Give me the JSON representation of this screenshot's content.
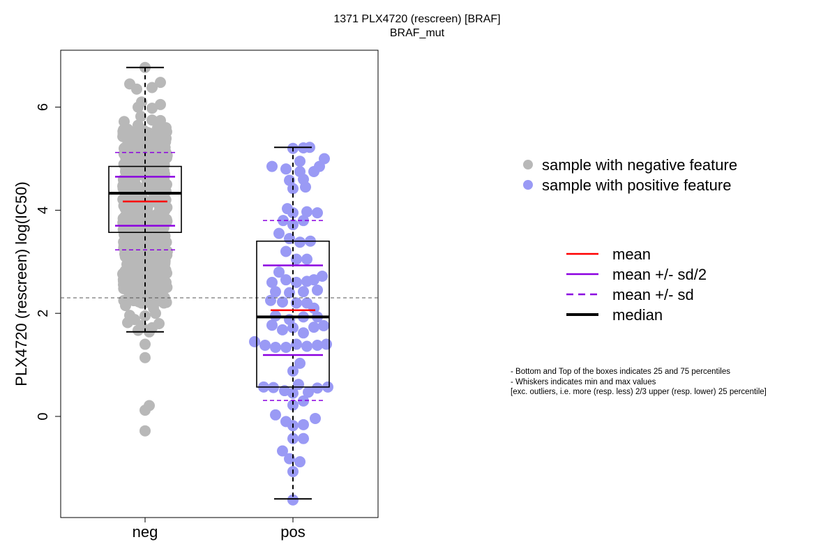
{
  "chart_data": {
    "type": "box-swarm",
    "title": "1371 PLX4720 (rescreen) [BRAF]",
    "subtitle": "BRAF_mut",
    "ylabel": "PLX4720 (rescreen) log(IC50)",
    "xlabel": "",
    "categories": [
      "neg",
      "pos"
    ],
    "y_ticks": [
      "0",
      "2",
      "4",
      "6"
    ],
    "ylim": [
      -1.9,
      7.2
    ],
    "reference_line_y": 2.3,
    "colors": {
      "neg": "#b8b8b8",
      "pos": "#9a9af5",
      "mean": "#ff0000",
      "sd": "#8b00e0",
      "median": "#000000"
    },
    "groups": [
      {
        "name": "neg",
        "q1": 3.57,
        "q3": 4.85,
        "median": 4.33,
        "mean": 4.17,
        "mean_plus_half_sd": 4.65,
        "mean_minus_half_sd": 3.7,
        "mean_plus_sd": 5.12,
        "mean_minus_sd": 3.23,
        "whisker_low": 1.64,
        "whisker_high": 6.77,
        "points": [
          {
            "x": -0.28,
            "y": 2.15
          },
          {
            "x": -0.22,
            "y": 2.5
          },
          {
            "x": -0.16,
            "y": 2.7
          },
          {
            "x": -0.2,
            "y": 2.3
          },
          {
            "x": -0.05,
            "y": 2.2
          },
          {
            "x": 0.05,
            "y": 2.35
          },
          {
            "x": 0.12,
            "y": 2.1
          },
          {
            "x": 0.2,
            "y": 2.25
          },
          {
            "x": 0.27,
            "y": 2.2
          },
          {
            "x": 0.3,
            "y": 2.6
          },
          {
            "x": -0.26,
            "y": 2.95
          },
          {
            "x": -0.12,
            "y": 2.85
          },
          {
            "x": 0.02,
            "y": 2.9
          },
          {
            "x": 0.16,
            "y": 3.0
          },
          {
            "x": 0.28,
            "y": 2.95
          },
          {
            "x": -0.3,
            "y": 3.3
          },
          {
            "x": -0.2,
            "y": 3.4
          },
          {
            "x": -0.08,
            "y": 3.25
          },
          {
            "x": 0.08,
            "y": 3.45
          },
          {
            "x": 0.22,
            "y": 3.35
          },
          {
            "x": -0.28,
            "y": 3.7
          },
          {
            "x": -0.16,
            "y": 3.85
          },
          {
            "x": 0.14,
            "y": 3.75
          },
          {
            "x": 0.26,
            "y": 3.9
          },
          {
            "x": -0.3,
            "y": 4.2
          },
          {
            "x": -0.22,
            "y": 4.4
          },
          {
            "x": 0.24,
            "y": 4.3
          },
          {
            "x": 0.31,
            "y": 4.5
          },
          {
            "x": -0.28,
            "y": 4.75
          },
          {
            "x": -0.2,
            "y": 4.95
          },
          {
            "x": 0.2,
            "y": 4.9
          },
          {
            "x": 0.28,
            "y": 4.7
          },
          {
            "x": -0.3,
            "y": 5.2
          },
          {
            "x": -0.16,
            "y": 5.35
          },
          {
            "x": 0.0,
            "y": 5.05
          },
          {
            "x": 0.14,
            "y": 5.3
          },
          {
            "x": 0.27,
            "y": 5.25
          },
          {
            "x": -0.24,
            "y": 5.55
          },
          {
            "x": -0.1,
            "y": 5.65
          },
          {
            "x": 0.04,
            "y": 5.5
          },
          {
            "x": 0.18,
            "y": 5.6
          },
          {
            "x": 0.3,
            "y": 5.6
          },
          {
            "x": -0.3,
            "y": 5.72
          },
          {
            "x": -0.06,
            "y": 5.82
          },
          {
            "x": 0.1,
            "y": 5.75
          },
          {
            "x": 0.22,
            "y": 5.74
          },
          {
            "x": -0.25,
            "y": 1.82
          },
          {
            "x": -0.15,
            "y": 1.88
          },
          {
            "x": -0.05,
            "y": 1.76
          },
          {
            "x": 0.1,
            "y": 1.72
          },
          {
            "x": 0.2,
            "y": 1.8
          },
          {
            "x": -0.22,
            "y": 1.96
          },
          {
            "x": 0.15,
            "y": 2.0
          },
          {
            "x": 0.0,
            "y": 1.95
          },
          {
            "x": -0.1,
            "y": 1.67
          },
          {
            "x": 0.06,
            "y": 1.64
          },
          {
            "x": 0.0,
            "y": 1.4
          },
          {
            "x": 0.0,
            "y": 1.14
          },
          {
            "x": 0.0,
            "y": 0.12
          },
          {
            "x": 0.06,
            "y": 0.21
          },
          {
            "x": 0.0,
            "y": -0.28
          },
          {
            "x": -0.1,
            "y": 6.0
          },
          {
            "x": 0.1,
            "y": 5.98
          },
          {
            "x": 0.22,
            "y": 6.05
          },
          {
            "x": -0.05,
            "y": 6.1
          },
          {
            "x": -0.12,
            "y": 6.35
          },
          {
            "x": 0.1,
            "y": 6.38
          },
          {
            "x": -0.22,
            "y": 6.45
          },
          {
            "x": 0.22,
            "y": 6.48
          },
          {
            "x": 0.0,
            "y": 6.77
          }
        ]
      },
      {
        "name": "pos",
        "q1": 0.57,
        "q3": 3.4,
        "median": 1.93,
        "mean": 2.06,
        "mean_plus_half_sd": 2.93,
        "mean_minus_half_sd": 1.19,
        "mean_plus_sd": 3.8,
        "mean_minus_sd": 0.31,
        "whisker_low": -1.6,
        "whisker_high": 5.22,
        "points": [
          {
            "x": 0.0,
            "y": 5.2
          },
          {
            "x": 0.15,
            "y": 5.21
          },
          {
            "x": 0.24,
            "y": 5.22
          },
          {
            "x": 0.1,
            "y": 4.95
          },
          {
            "x": 0.45,
            "y": 5.0
          },
          {
            "x": -0.3,
            "y": 4.85
          },
          {
            "x": -0.1,
            "y": 4.8
          },
          {
            "x": 0.1,
            "y": 4.75
          },
          {
            "x": 0.3,
            "y": 4.75
          },
          {
            "x": 0.38,
            "y": 4.85
          },
          {
            "x": -0.05,
            "y": 4.58
          },
          {
            "x": 0.15,
            "y": 4.6
          },
          {
            "x": 0.0,
            "y": 4.42
          },
          {
            "x": 0.18,
            "y": 4.45
          },
          {
            "x": -0.08,
            "y": 4.03
          },
          {
            "x": 0.0,
            "y": 3.95
          },
          {
            "x": 0.2,
            "y": 3.97
          },
          {
            "x": 0.35,
            "y": 3.95
          },
          {
            "x": 0.0,
            "y": 3.72
          },
          {
            "x": -0.14,
            "y": 3.8
          },
          {
            "x": 0.15,
            "y": 3.8
          },
          {
            "x": -0.2,
            "y": 3.55
          },
          {
            "x": -0.05,
            "y": 3.45
          },
          {
            "x": 0.1,
            "y": 3.38
          },
          {
            "x": 0.25,
            "y": 3.4
          },
          {
            "x": -0.1,
            "y": 3.2
          },
          {
            "x": 0.05,
            "y": 3.05
          },
          {
            "x": 0.2,
            "y": 3.05
          },
          {
            "x": -0.2,
            "y": 2.8
          },
          {
            "x": -0.3,
            "y": 2.6
          },
          {
            "x": -0.1,
            "y": 2.65
          },
          {
            "x": 0.05,
            "y": 2.6
          },
          {
            "x": 0.2,
            "y": 2.62
          },
          {
            "x": 0.3,
            "y": 2.65
          },
          {
            "x": 0.42,
            "y": 2.72
          },
          {
            "x": -0.25,
            "y": 2.42
          },
          {
            "x": -0.05,
            "y": 2.4
          },
          {
            "x": 0.15,
            "y": 2.42
          },
          {
            "x": 0.35,
            "y": 2.45
          },
          {
            "x": -0.32,
            "y": 2.25
          },
          {
            "x": -0.15,
            "y": 2.22
          },
          {
            "x": 0.05,
            "y": 2.2
          },
          {
            "x": 0.2,
            "y": 2.2
          },
          {
            "x": 0.3,
            "y": 2.1
          },
          {
            "x": -0.25,
            "y": 1.95
          },
          {
            "x": -0.05,
            "y": 1.88
          },
          {
            "x": 0.15,
            "y": 1.93
          },
          {
            "x": 0.35,
            "y": 1.93
          },
          {
            "x": -0.3,
            "y": 1.77
          },
          {
            "x": -0.15,
            "y": 1.68
          },
          {
            "x": 0.0,
            "y": 1.72
          },
          {
            "x": 0.15,
            "y": 1.62
          },
          {
            "x": 0.3,
            "y": 1.73
          },
          {
            "x": 0.44,
            "y": 1.76
          },
          {
            "x": -0.55,
            "y": 1.45
          },
          {
            "x": -0.4,
            "y": 1.38
          },
          {
            "x": -0.25,
            "y": 1.34
          },
          {
            "x": -0.1,
            "y": 1.34
          },
          {
            "x": 0.05,
            "y": 1.4
          },
          {
            "x": 0.2,
            "y": 1.36
          },
          {
            "x": 0.35,
            "y": 1.38
          },
          {
            "x": 0.48,
            "y": 1.4
          },
          {
            "x": 0.1,
            "y": 1.03
          },
          {
            "x": 0.0,
            "y": 0.88
          },
          {
            "x": -0.42,
            "y": 0.57
          },
          {
            "x": -0.28,
            "y": 0.56
          },
          {
            "x": -0.12,
            "y": 0.5
          },
          {
            "x": 0.0,
            "y": 0.45
          },
          {
            "x": 0.08,
            "y": 0.62
          },
          {
            "x": 0.22,
            "y": 0.47
          },
          {
            "x": 0.35,
            "y": 0.55
          },
          {
            "x": 0.5,
            "y": 0.57
          },
          {
            "x": 0.15,
            "y": 0.3
          },
          {
            "x": 0.0,
            "y": 0.22
          },
          {
            "x": -0.25,
            "y": 0.03
          },
          {
            "x": -0.1,
            "y": -0.1
          },
          {
            "x": 0.0,
            "y": -0.18
          },
          {
            "x": 0.15,
            "y": -0.16
          },
          {
            "x": 0.32,
            "y": -0.04
          },
          {
            "x": 0.0,
            "y": -0.43
          },
          {
            "x": 0.15,
            "y": -0.43
          },
          {
            "x": -0.15,
            "y": -0.67
          },
          {
            "x": -0.05,
            "y": -0.82
          },
          {
            "x": 0.1,
            "y": -0.88
          },
          {
            "x": 0.0,
            "y": -1.07
          },
          {
            "x": 0.0,
            "y": -1.62
          }
        ]
      }
    ],
    "legend_points": [
      {
        "label": "sample with negative feature",
        "color": "#b8b8b8"
      },
      {
        "label": "sample with positive feature",
        "color": "#9a9af5"
      }
    ],
    "legend_lines": [
      {
        "label": "mean",
        "color": "#ff0000",
        "style": "solid"
      },
      {
        "label": "mean +/- sd/2",
        "color": "#8b00e0",
        "style": "solid"
      },
      {
        "label": "mean +/- sd",
        "color": "#8b00e0",
        "style": "dashed"
      },
      {
        "label": "median",
        "color": "#000000",
        "style": "solid-thick"
      }
    ],
    "notes": [
      "- Bottom and Top of the boxes indicates 25 and 75 percentiles",
      "- Whiskers indicates min and max values",
      "[exc. outliers, i.e. more (resp. less) 2/3 upper (resp. lower) 25 percentile]"
    ]
  }
}
